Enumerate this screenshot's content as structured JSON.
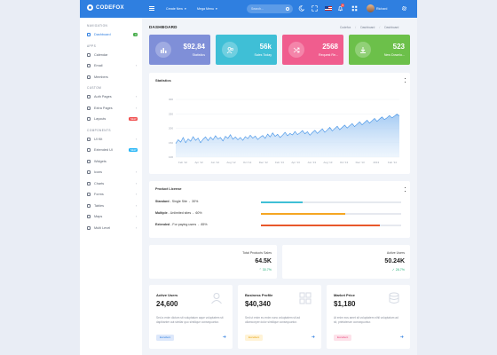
{
  "topbar": {
    "brand": "CODEFOX",
    "menu1": "Create New",
    "menu2": "Mega Menu",
    "search_placeholder": "Search...",
    "notif_count": "3",
    "user_name": "Richard"
  },
  "sidebar": {
    "sections": [
      {
        "heading": "NAVIGATION",
        "items": [
          {
            "label": "Dashboard",
            "active": true,
            "pill": "3",
            "pill_color": "#4caf50"
          }
        ]
      },
      {
        "heading": "APPS",
        "items": [
          {
            "label": "Calendar"
          },
          {
            "label": "Email",
            "chevron": "›"
          },
          {
            "label": "Members"
          }
        ]
      },
      {
        "heading": "CUSTOM",
        "items": [
          {
            "label": "Auth Pages",
            "chevron": "›"
          },
          {
            "label": "Extra Pages",
            "chevron": "›"
          },
          {
            "label": "Layouts",
            "pill": "NEW",
            "pill_color": "#f05050"
          }
        ]
      },
      {
        "heading": "COMPONENTS",
        "items": [
          {
            "label": "UI Kit",
            "chevron": "›"
          },
          {
            "label": "Extended UI",
            "pill": "NEW",
            "pill_color": "#29b6f6"
          },
          {
            "label": "Widgets"
          },
          {
            "label": "Icons",
            "chevron": "›"
          },
          {
            "label": "Charts",
            "chevron": "›"
          },
          {
            "label": "Forms",
            "chevron": "›"
          },
          {
            "label": "Tables",
            "chevron": "›"
          },
          {
            "label": "Maps",
            "chevron": "›"
          },
          {
            "label": "Multi Level",
            "chevron": "›"
          }
        ]
      }
    ]
  },
  "page": {
    "title": "DASHBOARD",
    "breadcrumb": [
      "Codefox",
      "Dashboard",
      "Dashboard"
    ]
  },
  "stats": [
    {
      "value": "$92,84",
      "label": "Statistics",
      "color": "#7f8fd8",
      "icon": "chart-icon"
    },
    {
      "value": "56k",
      "label": "Sales Today",
      "color": "#3fbfd6",
      "icon": "users-icon"
    },
    {
      "value": "2568",
      "label": "Request Re...",
      "color": "#f05d8e",
      "icon": "shuffle-icon"
    },
    {
      "value": "523",
      "label": "New Downlo...",
      "color": "#6cc04a",
      "icon": "download-icon"
    }
  ],
  "statistics_card": {
    "title": "Statistics",
    "chart_data": {
      "type": "area",
      "x_tick_labels": [
        "Feb '12",
        "Apr '12",
        "Jun '12",
        "Aug '12",
        "Oct '12",
        "Dec '12",
        "Feb '13",
        "Apr '13",
        "Jun '13",
        "Aug '13",
        "Oct '13",
        "Dec '13",
        "2013",
        "Feb '14"
      ],
      "y_tick_labels": [
        "300",
        "250",
        "200",
        "150",
        "100"
      ],
      "ylim": [
        100,
        300
      ],
      "series": [
        {
          "values": [
            147,
            160,
            152,
            168,
            150,
            163,
            155,
            171,
            158,
            166,
            150,
            162,
            170,
            157,
            169,
            160,
            174,
            163,
            168,
            156,
            172,
            165,
            178,
            162,
            170,
            160,
            168,
            158,
            171,
            164,
            176,
            166,
            173,
            161,
            169,
            175,
            165,
            180,
            170,
            184,
            172,
            179,
            168,
            176,
            186,
            174,
            182,
            177,
            189,
            178,
            184,
            192,
            181,
            188,
            176,
            185,
            193,
            182,
            190,
            198,
            186,
            194,
            203,
            191,
            199,
            207,
            195,
            203,
            211,
            201,
            209,
            216,
            206,
            214,
            222,
            212,
            220,
            228,
            218,
            226,
            234,
            224,
            232,
            239,
            230,
            236,
            244,
            236,
            242,
            249,
            243
          ]
        }
      ]
    }
  },
  "license_card": {
    "title": "Product License",
    "rows": [
      {
        "name": "Standard",
        "desc": "- Single Site",
        "percent": "30%",
        "fill": 0.3,
        "color": "#3fbfd6"
      },
      {
        "name": "Multiple",
        "desc": "- Unlimited sites",
        "percent": "60%",
        "fill": 0.6,
        "color": "#f5a623"
      },
      {
        "name": "Extended",
        "desc": "- For paying users",
        "percent": "85%",
        "fill": 0.85,
        "color": "#e8572b"
      }
    ]
  },
  "mini_stats": [
    {
      "label": "Total Products Sales",
      "value": "64.5K",
      "trend": "30.7%"
    },
    {
      "label": "Active Users",
      "value": "50.24K",
      "trend": "28.7%"
    }
  ],
  "bottom_cards": [
    {
      "title": "Active Users",
      "value": "24,600",
      "text": "Sed a enim dictum sit voluptatum aque voluptatem sit dapibanter aut similar quo similique consequuntur.",
      "tag": "Excellent",
      "tag_bg": "#dde8fb",
      "tag_color": "#2f7fe0",
      "icon": "user-icon"
    },
    {
      "title": "Business Profile",
      "value": "$40,340",
      "text": "Sed ut enim eu enim nunc voluptatem sit ad ullamcorper dolor similique consequuntur.",
      "tag": "Excellent",
      "tag_bg": "#fff3d6",
      "tag_color": "#e5a00d",
      "icon": "grid-icon"
    },
    {
      "title": "Market Price",
      "value": "$1,180",
      "text": "At enim eos amet sit voluptatem nihil voluptatum ad sit, prietaterum consequuntur.",
      "tag": "Excellent",
      "tag_bg": "#fde2ea",
      "tag_color": "#e8457a",
      "icon": "database-icon"
    }
  ]
}
